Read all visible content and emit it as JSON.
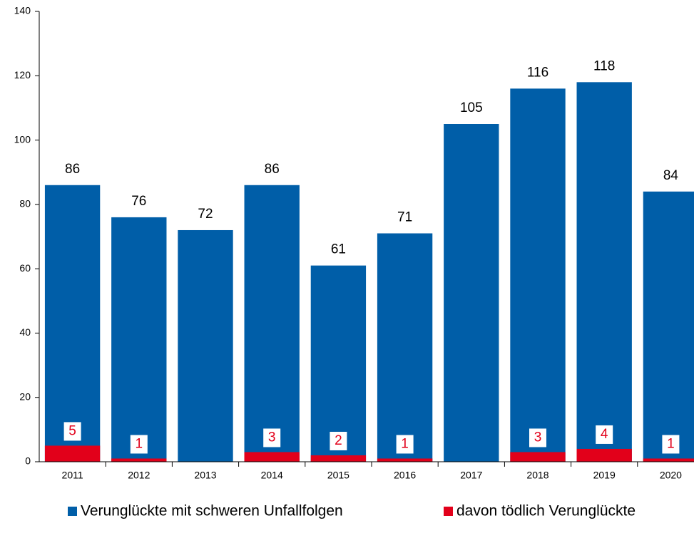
{
  "chart_data": {
    "type": "bar",
    "categories": [
      "2011",
      "2012",
      "2013",
      "2014",
      "2015",
      "2016",
      "2017",
      "2018",
      "2019",
      "2020"
    ],
    "series": [
      {
        "name": "Verunglückte mit schweren Unfallfolgen",
        "color": "#005ea8",
        "values": [
          86,
          76,
          72,
          86,
          61,
          71,
          105,
          116,
          118,
          84
        ]
      },
      {
        "name": "davon tödlich Verunglückte",
        "color": "#e2001a",
        "values": [
          5,
          1,
          null,
          3,
          2,
          1,
          null,
          3,
          4,
          1
        ]
      }
    ],
    "ylim": [
      0,
      140
    ],
    "yticks": [
      0,
      20,
      40,
      60,
      80,
      100,
      120,
      140
    ],
    "legend": "bottom"
  }
}
